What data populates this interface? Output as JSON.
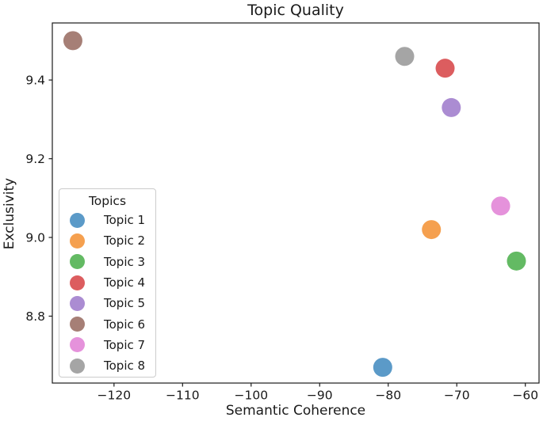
{
  "chart_data": {
    "type": "scatter",
    "title": "Topic Quality",
    "xlabel": "Semantic Coherence",
    "ylabel": "Exclusivity",
    "legend_title": "Topics",
    "legend_position": "center left",
    "grid": false,
    "xlim": [
      -129,
      -58
    ],
    "ylim": [
      8.63,
      9.545
    ],
    "xticks": [
      {
        "value": -120,
        "label": "−120"
      },
      {
        "value": -110,
        "label": "−110"
      },
      {
        "value": -100,
        "label": "−100"
      },
      {
        "value": -90,
        "label": "−90"
      },
      {
        "value": -80,
        "label": "−80"
      },
      {
        "value": -70,
        "label": "−70"
      },
      {
        "value": -60,
        "label": "−60"
      }
    ],
    "yticks": [
      {
        "value": 8.8,
        "label": "8.8"
      },
      {
        "value": 9.0,
        "label": "9.0"
      },
      {
        "value": 9.2,
        "label": "9.2"
      },
      {
        "value": 9.4,
        "label": "9.4"
      }
    ],
    "series": [
      {
        "name": "Topic 1",
        "color": "#5B9AC8",
        "x": -80.8,
        "y": 8.67
      },
      {
        "name": "Topic 2",
        "color": "#F5A04F",
        "x": -73.7,
        "y": 9.02
      },
      {
        "name": "Topic 3",
        "color": "#63BA63",
        "x": -61.3,
        "y": 8.94
      },
      {
        "name": "Topic 4",
        "color": "#DC5D5F",
        "x": -71.7,
        "y": 9.43
      },
      {
        "name": "Topic 5",
        "color": "#AB8CD2",
        "x": -70.8,
        "y": 9.33
      },
      {
        "name": "Topic 6",
        "color": "#A67F76",
        "x": -126.0,
        "y": 9.5
      },
      {
        "name": "Topic 7",
        "color": "#E592DB",
        "x": -63.6,
        "y": 9.08
      },
      {
        "name": "Topic 8",
        "color": "#A5A5A5",
        "x": -77.6,
        "y": 9.46
      }
    ]
  }
}
